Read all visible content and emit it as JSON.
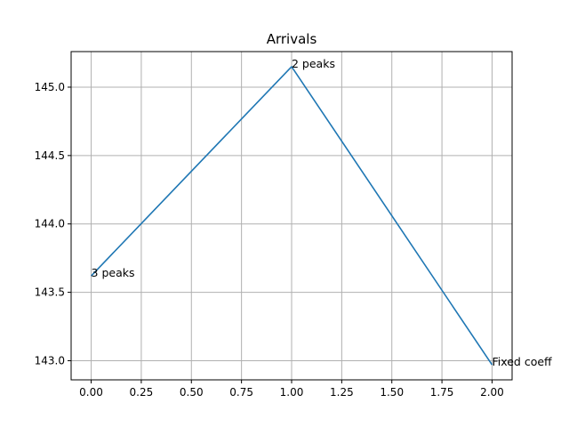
{
  "chart_data": {
    "type": "line",
    "title": "Arrivals",
    "xlabel": "",
    "ylabel": "",
    "x": [
      0,
      1,
      2
    ],
    "series": [
      {
        "values": [
          143.62,
          145.15,
          142.97
        ],
        "color": "#1f77b4"
      }
    ],
    "annotations": [
      {
        "x": 0,
        "y": 143.62,
        "text": "3 peaks"
      },
      {
        "x": 1,
        "y": 145.15,
        "text": "2 peaks"
      },
      {
        "x": 2,
        "y": 142.97,
        "text": "Fixed coeff"
      }
    ],
    "xlim": [
      -0.1,
      2.1
    ],
    "ylim": [
      142.86,
      145.26
    ],
    "xticks": [
      0.0,
      0.25,
      0.5,
      0.75,
      1.0,
      1.25,
      1.5,
      1.75,
      2.0
    ],
    "xtick_labels": [
      "0.00",
      "0.25",
      "0.50",
      "0.75",
      "1.00",
      "1.25",
      "1.50",
      "1.75",
      "2.00"
    ],
    "yticks": [
      143.0,
      143.5,
      144.0,
      144.5,
      145.0
    ],
    "ytick_labels": [
      "143.0",
      "143.5",
      "144.0",
      "144.5",
      "145.0"
    ],
    "grid": true,
    "legend": "none"
  }
}
